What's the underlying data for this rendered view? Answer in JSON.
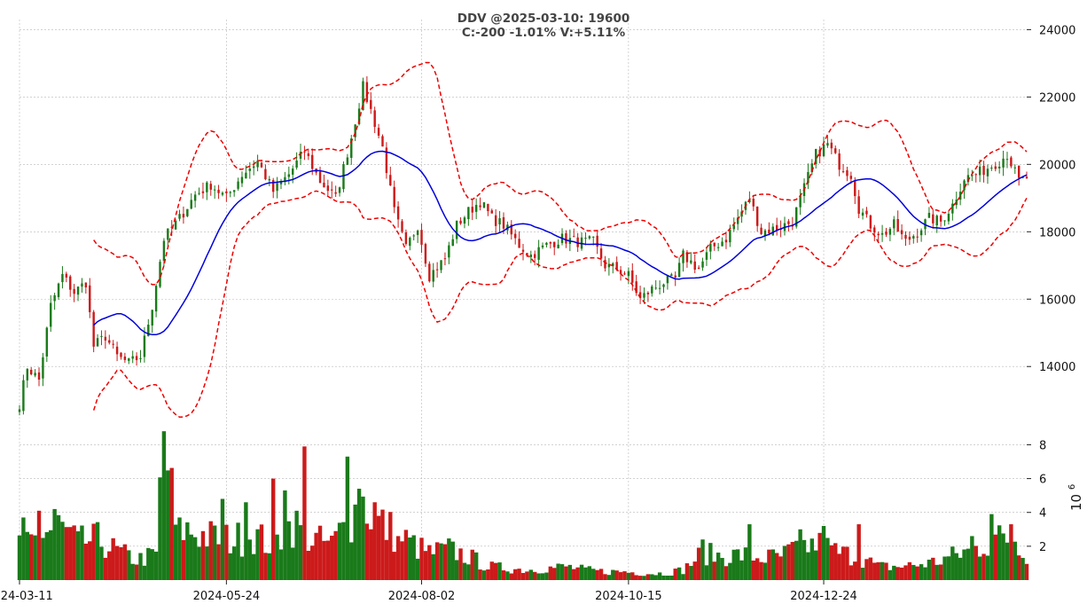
{
  "chart_data": {
    "type": "candlestick",
    "title_line1": "DDV @2025-03-10: 19600",
    "title_line2": "C:-200 -1.01% V:+5.11%",
    "x_tick_labels": [
      "2024-03-11",
      "2024-05-24",
      "2024-08-02",
      "2024-10-15",
      "2024-12-24"
    ],
    "x_tick_indices": [
      0,
      53,
      103,
      156,
      206
    ],
    "price_axis": {
      "ylim": [
        12400,
        24300
      ],
      "ticks": [
        14000,
        16000,
        18000,
        20000,
        22000,
        24000
      ]
    },
    "volume_axis": {
      "ylim": [
        0,
        8.6
      ],
      "ticks": [
        2,
        4,
        6,
        8
      ],
      "exponent_label": "10",
      "exponent_power": "6",
      "unit_multiplier": 1000000
    },
    "grid": true,
    "colors": {
      "up": "#1a7a1a",
      "down": "#cc1a1a",
      "sma": "#0000dd",
      "bands": "#ee0000",
      "grid": "#b8b8b8"
    },
    "price_anchors": [
      [
        0,
        12900
      ],
      [
        2,
        14000
      ],
      [
        5,
        13600
      ],
      [
        8,
        15800
      ],
      [
        11,
        16700
      ],
      [
        14,
        16200
      ],
      [
        17,
        16500
      ],
      [
        19,
        14600
      ],
      [
        22,
        14900
      ],
      [
        25,
        14300
      ],
      [
        28,
        14100
      ],
      [
        31,
        14300
      ],
      [
        34,
        15800
      ],
      [
        37,
        17800
      ],
      [
        41,
        18400
      ],
      [
        45,
        19100
      ],
      [
        49,
        19400
      ],
      [
        53,
        19000
      ],
      [
        57,
        19700
      ],
      [
        61,
        20100
      ],
      [
        65,
        19200
      ],
      [
        69,
        19700
      ],
      [
        73,
        20400
      ],
      [
        77,
        19500
      ],
      [
        81,
        19000
      ],
      [
        85,
        20800
      ],
      [
        88,
        22300
      ],
      [
        90,
        21600
      ],
      [
        93,
        20500
      ],
      [
        96,
        18600
      ],
      [
        99,
        17500
      ],
      [
        102,
        18200
      ],
      [
        105,
        16700
      ],
      [
        109,
        17200
      ],
      [
        112,
        18200
      ],
      [
        115,
        18600
      ],
      [
        118,
        18900
      ],
      [
        121,
        18400
      ],
      [
        124,
        18200
      ],
      [
        128,
        17600
      ],
      [
        131,
        17300
      ],
      [
        135,
        17600
      ],
      [
        139,
        17800
      ],
      [
        143,
        17700
      ],
      [
        147,
        17700
      ],
      [
        150,
        17000
      ],
      [
        153,
        16900
      ],
      [
        156,
        16700
      ],
      [
        159,
        16000
      ],
      [
        162,
        16300
      ],
      [
        165,
        16500
      ],
      [
        168,
        16600
      ],
      [
        170,
        17300
      ],
      [
        174,
        16900
      ],
      [
        177,
        17500
      ],
      [
        181,
        17800
      ],
      [
        184,
        18400
      ],
      [
        187,
        19000
      ],
      [
        190,
        18000
      ],
      [
        194,
        18100
      ],
      [
        198,
        18300
      ],
      [
        201,
        19300
      ],
      [
        204,
        20300
      ],
      [
        207,
        20600
      ],
      [
        210,
        20000
      ],
      [
        213,
        19700
      ],
      [
        215,
        18700
      ],
      [
        218,
        18200
      ],
      [
        221,
        17900
      ],
      [
        224,
        18200
      ],
      [
        227,
        17700
      ],
      [
        230,
        18000
      ],
      [
        233,
        18400
      ],
      [
        236,
        18300
      ],
      [
        239,
        18800
      ],
      [
        242,
        19600
      ],
      [
        245,
        19700
      ],
      [
        248,
        19900
      ],
      [
        251,
        20100
      ],
      [
        253,
        20300
      ],
      [
        256,
        19500
      ],
      [
        258,
        19600
      ]
    ],
    "volume_anchors": [
      [
        0,
        2.0
      ],
      [
        5,
        2.6
      ],
      [
        10,
        3.2
      ],
      [
        15,
        2.2
      ],
      [
        20,
        2.4
      ],
      [
        25,
        1.7
      ],
      [
        30,
        1.2
      ],
      [
        35,
        1.5
      ],
      [
        37,
        8.7
      ],
      [
        40,
        3.1
      ],
      [
        45,
        2.8
      ],
      [
        50,
        2.5
      ],
      [
        55,
        2.4
      ],
      [
        60,
        2.7
      ],
      [
        65,
        2.0
      ],
      [
        70,
        3.4
      ],
      [
        75,
        2.4
      ],
      [
        80,
        2.1
      ],
      [
        84,
        3.5
      ],
      [
        88,
        4.6
      ],
      [
        92,
        3.4
      ],
      [
        96,
        2.8
      ],
      [
        100,
        2.2
      ],
      [
        105,
        1.6
      ],
      [
        110,
        1.8
      ],
      [
        115,
        1.4
      ],
      [
        120,
        0.8
      ],
      [
        125,
        0.7
      ],
      [
        130,
        0.6
      ],
      [
        135,
        0.7
      ],
      [
        140,
        0.8
      ],
      [
        145,
        0.6
      ],
      [
        150,
        0.5
      ],
      [
        155,
        0.5
      ],
      [
        160,
        0.4
      ],
      [
        165,
        0.4
      ],
      [
        170,
        0.6
      ],
      [
        175,
        1.6
      ],
      [
        180,
        1.4
      ],
      [
        185,
        1.5
      ],
      [
        190,
        1.3
      ],
      [
        195,
        1.4
      ],
      [
        200,
        2.0
      ],
      [
        205,
        2.1
      ],
      [
        210,
        1.6
      ],
      [
        215,
        1.4
      ],
      [
        220,
        0.8
      ],
      [
        225,
        0.8
      ],
      [
        230,
        0.9
      ],
      [
        235,
        1.1
      ],
      [
        240,
        1.5
      ],
      [
        245,
        1.9
      ],
      [
        250,
        2.4
      ],
      [
        255,
        2.5
      ],
      [
        258,
        1.6
      ]
    ],
    "volume_spikes": [
      [
        1,
        3.7
      ],
      [
        5,
        4.1
      ],
      [
        9,
        4.2
      ],
      [
        37,
        8.8
      ],
      [
        41,
        3.7
      ],
      [
        52,
        4.8
      ],
      [
        58,
        4.6
      ],
      [
        65,
        6.0
      ],
      [
        68,
        5.3
      ],
      [
        73,
        7.9
      ],
      [
        84,
        7.3
      ],
      [
        87,
        5.4
      ],
      [
        91,
        4.6
      ],
      [
        97,
        2.6
      ],
      [
        103,
        2.5
      ],
      [
        175,
        2.4
      ],
      [
        187,
        3.3
      ],
      [
        200,
        3.0
      ],
      [
        206,
        3.2
      ],
      [
        215,
        3.3
      ],
      [
        244,
        2.6
      ],
      [
        249,
        3.9
      ],
      [
        254,
        3.3
      ]
    ],
    "session_count": 259,
    "band_period": 20,
    "band_multiplier": 2
  }
}
